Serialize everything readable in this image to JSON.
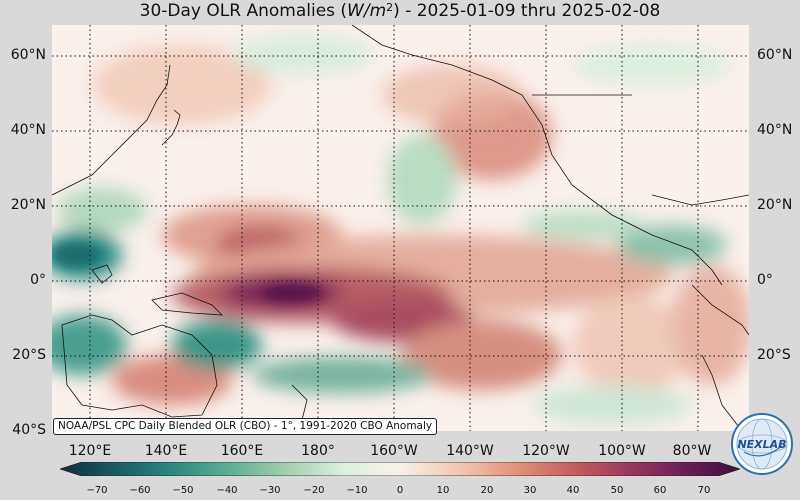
{
  "title": {
    "prefix": "30-Day OLR Anomalies (",
    "units_base": "W/m",
    "units_exp": "2",
    "suffix": ") - 2025-01-09 thru 2025-02-08"
  },
  "map": {
    "projection": "equirectangular, Pacific-centered",
    "lat_labels": [
      "60°N",
      "40°N",
      "20°N",
      "0°",
      "20°S",
      "40°S"
    ],
    "lon_labels": [
      "120°E",
      "140°E",
      "160°E",
      "180°",
      "160°W",
      "140°W",
      "120°W",
      "100°W",
      "80°W"
    ],
    "gridlines": "dotted"
  },
  "credit": "NOAA/PSL CPC Daily Blended OLR (CBO) - 1°, 1991-2020 CBO Anomaly",
  "colorbar": {
    "ticks": [
      "−70",
      "−60",
      "−50",
      "−40",
      "−30",
      "−20",
      "−10",
      "0",
      "10",
      "20",
      "30",
      "40",
      "50",
      "60",
      "70"
    ],
    "colors": [
      "#0f2d3d",
      "#1a5b64",
      "#2a8a80",
      "#5fae95",
      "#a3cfb0",
      "#dcefdf",
      "#f8f0ea",
      "#f2c9b3",
      "#e2957e",
      "#c7605f",
      "#9c3a5e",
      "#6a1f56",
      "#3d0e3d"
    ]
  },
  "logo": {
    "text": "NEXLAB"
  }
}
